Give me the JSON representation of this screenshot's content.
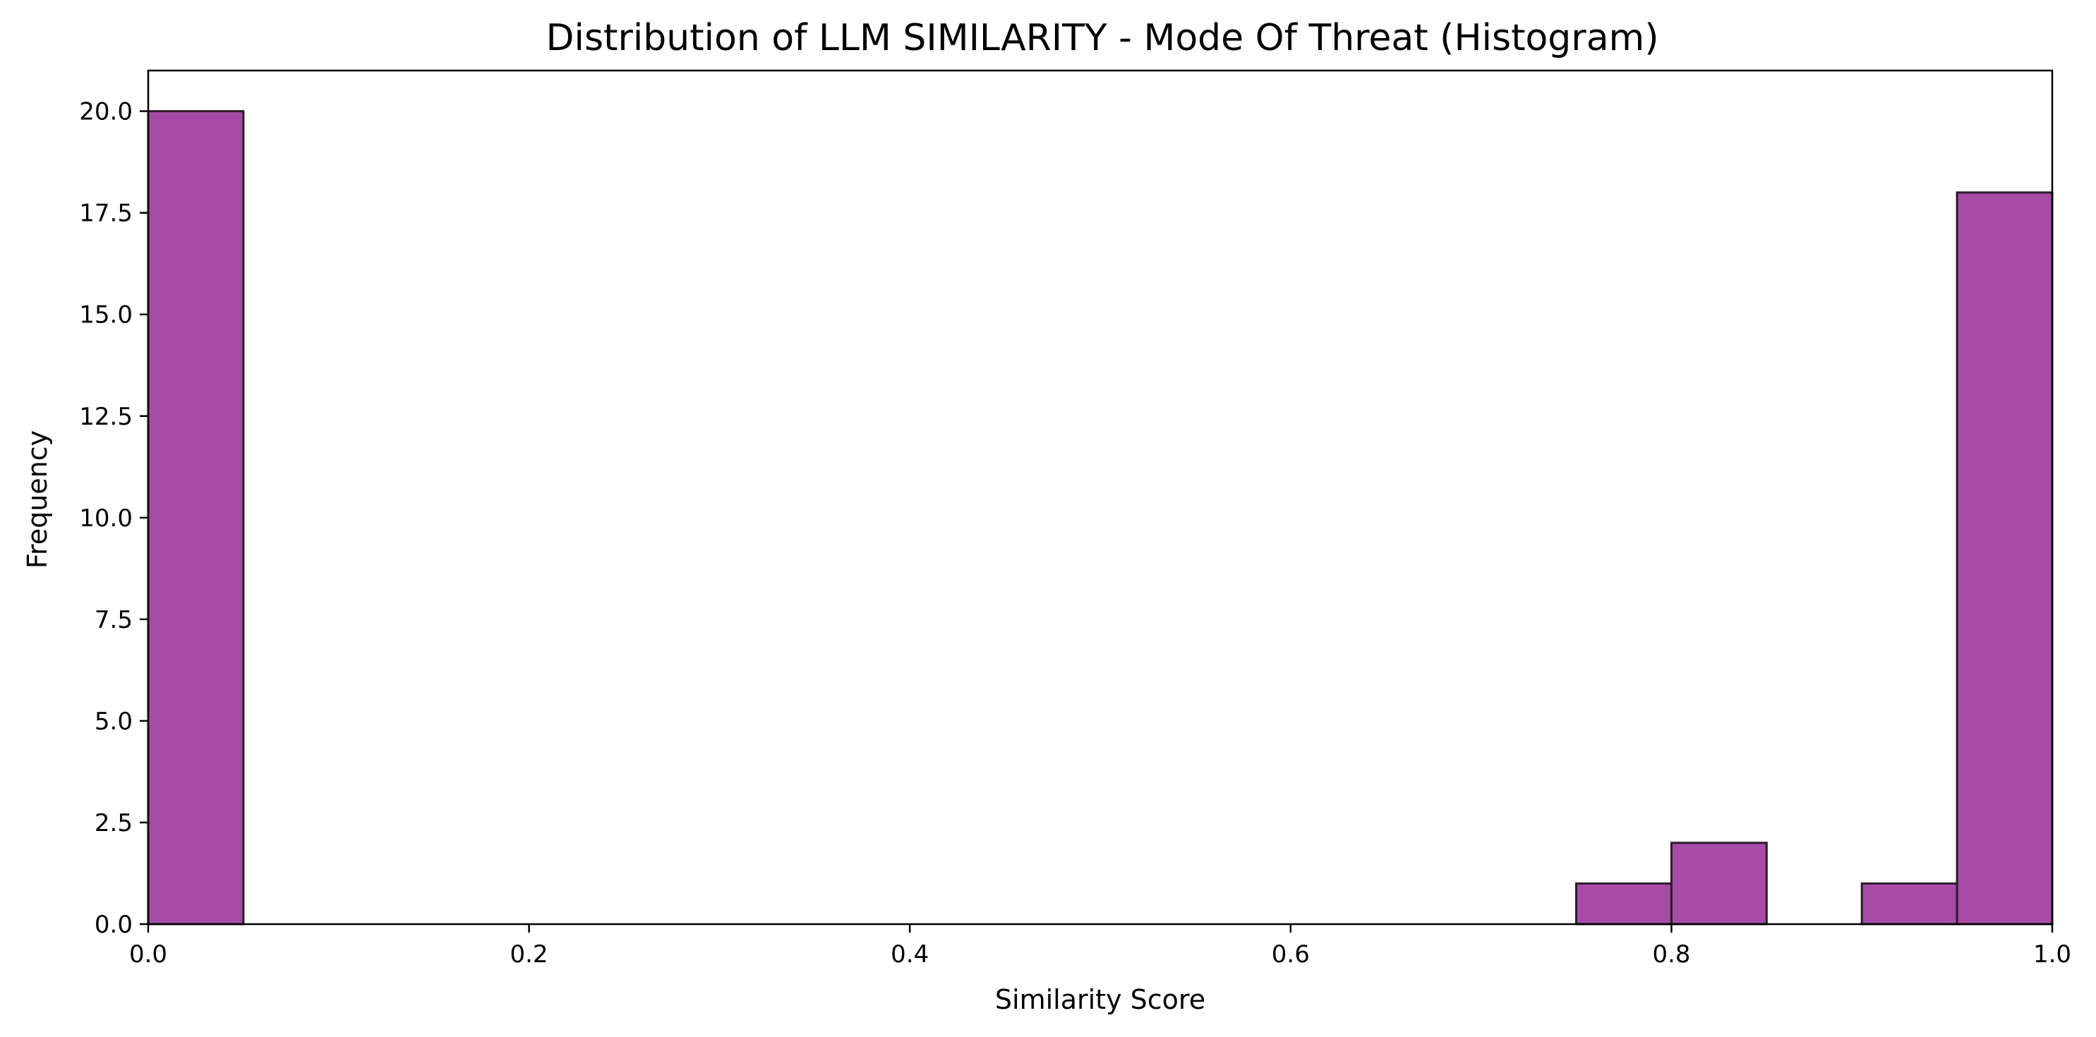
{
  "chart_data": {
    "type": "bar",
    "title": "Distribution of LLM SIMILARITY - Mode Of Threat (Histogram)",
    "xlabel": "Similarity Score",
    "ylabel": "Frequency",
    "xlim": [
      0.0,
      1.0
    ],
    "ylim": [
      0,
      21
    ],
    "grid": false,
    "x_ticks": [
      0.0,
      0.2,
      0.4,
      0.6,
      0.8,
      1.0
    ],
    "x_tick_labels": [
      "0.0",
      "0.2",
      "0.4",
      "0.6",
      "0.8",
      "1.0"
    ],
    "y_ticks": [
      0,
      2.5,
      5,
      7.5,
      10,
      12.5,
      15,
      17.5,
      20
    ],
    "y_tick_labels": [
      "0.0",
      "2.5",
      "5.0",
      "7.5",
      "10.0",
      "12.5",
      "15.0",
      "17.5",
      "20.0"
    ],
    "bin_edges": [
      0.0,
      0.05,
      0.1,
      0.15,
      0.2,
      0.25,
      0.3,
      0.35,
      0.4,
      0.45,
      0.5,
      0.55,
      0.6,
      0.65,
      0.7,
      0.75,
      0.8,
      0.85,
      0.9,
      0.95,
      1.0
    ],
    "values": [
      20,
      0,
      0,
      0,
      0,
      0,
      0,
      0,
      0,
      0,
      0,
      0,
      0,
      0,
      0,
      1,
      2,
      0,
      1,
      18
    ],
    "bar_color": "#a64ca6",
    "edge_color": "#2b1a2b"
  }
}
